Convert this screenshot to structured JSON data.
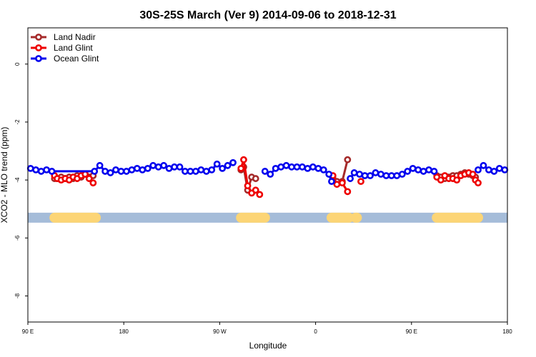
{
  "chart_data": {
    "type": "line",
    "title": "30S-25S March (Ver 9)   2014-09-06 to 2018-12-31",
    "xlabel": "Longitude",
    "ylabel": "XCO2 - MLO trend (ppm)",
    "xlim": [
      0,
      360
    ],
    "ylim": [
      -8.9,
      1.25
    ],
    "x_ticks": [
      {
        "pos": 0,
        "label": "90 E"
      },
      {
        "pos": 72,
        "label": "180"
      },
      {
        "pos": 144,
        "label": "90 W"
      },
      {
        "pos": 216,
        "label": "0"
      },
      {
        "pos": 288,
        "label": "90 E"
      },
      {
        "pos": 360,
        "label": "180"
      }
    ],
    "y_ticks": [
      {
        "value": 0,
        "label": "0"
      },
      {
        "value": -2,
        "label": "-2"
      },
      {
        "value": -4,
        "label": "-4"
      },
      {
        "value": -6,
        "label": "-6"
      },
      {
        "value": -8,
        "label": "-8"
      }
    ],
    "grid": false,
    "legend_position": "top-left",
    "land_mask_band": {
      "y": -5.3,
      "ocean_color": "#a5bcd9",
      "land_color": "#fcd576",
      "land_segments": [
        [
          20,
          51
        ],
        [
          160,
          178
        ],
        [
          228,
          241
        ],
        [
          246,
          247
        ],
        [
          307,
          338
        ]
      ]
    },
    "series": [
      {
        "name": "Land Nadir",
        "color": "#a52a2a",
        "segments": [
          [
            [
              20,
              -3.95
            ],
            [
              22,
              -3.95
            ],
            [
              25,
              -3.9
            ],
            [
              28,
              -3.95
            ],
            [
              31,
              -3.9
            ],
            [
              34,
              -3.95
            ],
            [
              37,
              -3.85
            ],
            [
              40,
              -3.9
            ],
            [
              43,
              -3.8
            ],
            [
              46,
              -3.9
            ],
            [
              49,
              -3.85
            ]
          ],
          [
            [
              160,
              -3.65
            ],
            [
              162,
              -3.55
            ],
            [
              165,
              -4.35
            ],
            [
              168,
              -3.9
            ],
            [
              171,
              -3.95
            ]
          ],
          [
            [
              229,
              -3.95
            ],
            [
              232,
              -4.05
            ],
            [
              236,
              -4.05
            ],
            [
              240,
              -3.3
            ]
          ],
          [
            [
              307,
              -3.85
            ],
            [
              310,
              -3.9
            ],
            [
              313,
              -3.95
            ],
            [
              316,
              -3.9
            ],
            [
              319,
              -3.85
            ],
            [
              322,
              -3.85
            ],
            [
              325,
              -3.8
            ],
            [
              328,
              -3.75
            ],
            [
              331,
              -3.8
            ],
            [
              334,
              -3.85
            ],
            [
              336,
              -3.9
            ]
          ]
        ]
      },
      {
        "name": "Land Glint",
        "color": "#ee0000",
        "segments": [
          [
            [
              20,
              -3.85
            ],
            [
              22,
              -3.95
            ],
            [
              25,
              -4.0
            ],
            [
              28,
              -3.95
            ],
            [
              31,
              -4.0
            ],
            [
              34,
              -3.9
            ],
            [
              37,
              -3.95
            ],
            [
              40,
              -3.85
            ],
            [
              43,
              -3.8
            ],
            [
              46,
              -3.95
            ],
            [
              49,
              -4.1
            ]
          ],
          [
            [
              160,
              -3.6
            ],
            [
              162,
              -3.3
            ],
            [
              165,
              -4.2
            ],
            [
              168,
              -4.45
            ],
            [
              171,
              -4.35
            ],
            [
              174,
              -4.5
            ]
          ],
          [
            [
              229,
              -3.85
            ],
            [
              232,
              -4.15
            ],
            [
              236,
              -4.1
            ],
            [
              240,
              -4.4
            ]
          ],
          [
            [
              250,
              -4.05
            ]
          ],
          [
            [
              307,
              -3.9
            ],
            [
              310,
              -4.0
            ],
            [
              313,
              -3.85
            ],
            [
              316,
              -3.95
            ],
            [
              319,
              -3.95
            ],
            [
              322,
              -4.0
            ],
            [
              325,
              -3.85
            ],
            [
              328,
              -3.8
            ],
            [
              331,
              -3.75
            ],
            [
              334,
              -3.8
            ],
            [
              336,
              -4.0
            ],
            [
              338,
              -4.1
            ]
          ]
        ]
      },
      {
        "name": "Ocean Glint",
        "color": "#0000ee",
        "segments": [
          [
            [
              2,
              -3.6
            ],
            [
              6,
              -3.65
            ],
            [
              10,
              -3.7
            ],
            [
              14,
              -3.65
            ],
            [
              18,
              -3.7
            ],
            [
              50,
              -3.7
            ],
            [
              54,
              -3.5
            ],
            [
              58,
              -3.7
            ],
            [
              62,
              -3.75
            ],
            [
              66,
              -3.65
            ],
            [
              70,
              -3.7
            ],
            [
              74,
              -3.7
            ],
            [
              78,
              -3.65
            ],
            [
              82,
              -3.6
            ],
            [
              86,
              -3.65
            ],
            [
              90,
              -3.6
            ],
            [
              94,
              -3.5
            ],
            [
              98,
              -3.55
            ],
            [
              102,
              -3.5
            ],
            [
              106,
              -3.6
            ],
            [
              110,
              -3.55
            ],
            [
              114,
              -3.55
            ],
            [
              118,
              -3.7
            ],
            [
              122,
              -3.7
            ],
            [
              126,
              -3.7
            ],
            [
              130,
              -3.65
            ],
            [
              134,
              -3.7
            ],
            [
              138,
              -3.65
            ],
            [
              142,
              -3.45
            ],
            [
              146,
              -3.6
            ],
            [
              150,
              -3.5
            ],
            [
              154,
              -3.4
            ]
          ],
          [
            [
              178,
              -3.7
            ],
            [
              182,
              -3.8
            ],
            [
              186,
              -3.6
            ],
            [
              190,
              -3.55
            ],
            [
              194,
              -3.5
            ],
            [
              198,
              -3.55
            ],
            [
              202,
              -3.55
            ],
            [
              206,
              -3.55
            ],
            [
              210,
              -3.6
            ],
            [
              214,
              -3.55
            ],
            [
              218,
              -3.6
            ],
            [
              222,
              -3.65
            ],
            [
              226,
              -3.8
            ],
            [
              228,
              -4.05
            ]
          ],
          [
            [
              242,
              -3.95
            ],
            [
              245,
              -3.75
            ],
            [
              249,
              -3.8
            ],
            [
              253,
              -3.85
            ],
            [
              257,
              -3.85
            ],
            [
              261,
              -3.75
            ],
            [
              265,
              -3.8
            ],
            [
              269,
              -3.85
            ],
            [
              273,
              -3.85
            ],
            [
              277,
              -3.85
            ],
            [
              281,
              -3.8
            ],
            [
              285,
              -3.7
            ],
            [
              289,
              -3.6
            ],
            [
              293,
              -3.65
            ],
            [
              297,
              -3.7
            ],
            [
              301,
              -3.65
            ],
            [
              305,
              -3.7
            ]
          ],
          [
            [
              338,
              -3.65
            ],
            [
              342,
              -3.5
            ],
            [
              346,
              -3.65
            ],
            [
              350,
              -3.7
            ],
            [
              354,
              -3.6
            ],
            [
              358,
              -3.65
            ]
          ]
        ]
      }
    ]
  }
}
